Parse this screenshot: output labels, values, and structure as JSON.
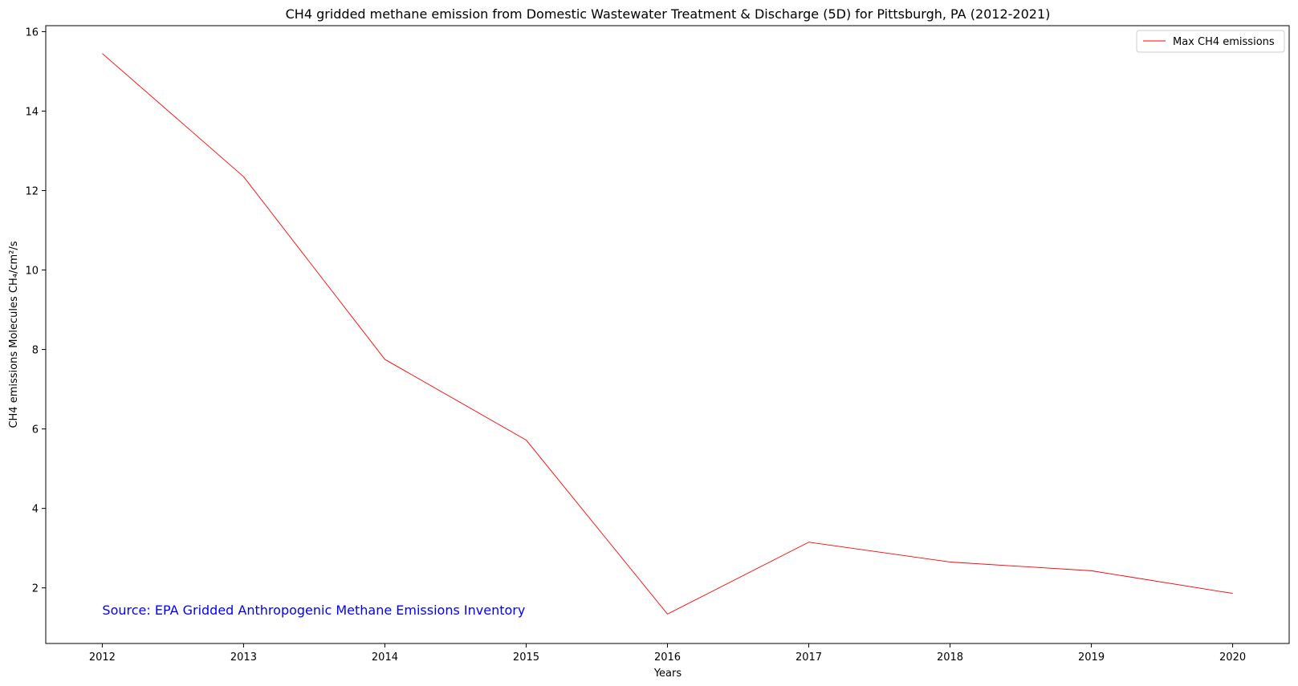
{
  "chart_data": {
    "type": "line",
    "title": "CH4 gridded methane emission from Domestic Wastewater Treatment & Discharge (5D) for Pittsburgh, PA (2012-2021)",
    "xlabel": "Years",
    "ylabel": "CH4 emissions Molecules CH₄/cm²/s",
    "x": [
      2012,
      2013,
      2014,
      2015,
      2016,
      2017,
      2018,
      2019,
      2020
    ],
    "x_tick_labels": [
      "2012",
      "2013",
      "2014",
      "2015",
      "2016",
      "2017",
      "2018",
      "2019",
      "2020"
    ],
    "xlim": [
      2011.6,
      2020.4
    ],
    "ylim": [
      0.6,
      16.15
    ],
    "y_ticks": [
      2,
      4,
      6,
      8,
      10,
      12,
      14,
      16
    ],
    "y_tick_labels": [
      "2",
      "4",
      "6",
      "8",
      "10",
      "12",
      "14",
      "16"
    ],
    "grid": false,
    "legend_position": "top-right",
    "series": [
      {
        "name": "Max CH4 emissions",
        "color": "#ff0000",
        "values": [
          15.45,
          12.35,
          7.75,
          5.72,
          1.34,
          3.15,
          2.65,
          2.43,
          1.86
        ]
      }
    ],
    "annotation": {
      "text": "Source: EPA Gridded Anthropogenic Methane Emissions Inventory",
      "color": "#0000ff",
      "x": 2012,
      "y": 1.45
    }
  }
}
